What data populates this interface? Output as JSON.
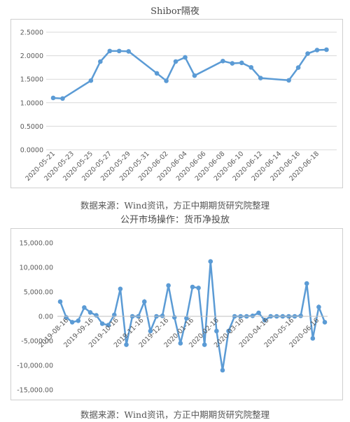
{
  "chart_data": [
    {
      "type": "line",
      "title": "Shibor隔夜",
      "x": [
        "2020-05-21",
        "2020-05-22",
        "2020-05-25",
        "2020-05-26",
        "2020-05-27",
        "2020-05-28",
        "2020-05-29",
        "2020-06-01",
        "2020-06-02",
        "2020-06-03",
        "2020-06-04",
        "2020-06-05",
        "2020-06-08",
        "2020-06-09",
        "2020-06-10",
        "2020-06-11",
        "2020-06-12",
        "2020-06-15",
        "2020-06-16",
        "2020-06-17",
        "2020-06-18",
        "2020-06-19"
      ],
      "values": [
        1.102,
        1.09,
        1.47,
        1.875,
        2.1,
        2.1,
        2.092,
        1.625,
        1.466,
        1.877,
        1.965,
        1.577,
        1.886,
        1.837,
        1.848,
        1.752,
        1.525,
        1.477,
        1.748,
        2.045,
        2.12,
        2.128
      ],
      "xticks": [
        "2020-05-21",
        "2020-05-23",
        "2020-05-25",
        "2020-05-27",
        "2020-05-29",
        "2020-05-31",
        "2020-06-02",
        "2020-06-04",
        "2020-06-06",
        "2020-06-08",
        "2020-06-10",
        "2020-06-12",
        "2020-06-14",
        "2020-06-16",
        "2020-06-18"
      ],
      "yticks": [
        "0.0000",
        "0.5000",
        "1.0000",
        "1.5000",
        "2.0000",
        "2.5000"
      ],
      "ylim": [
        0,
        2.5
      ],
      "xlabel": "",
      "ylabel": "",
      "color": "#5b9bd5",
      "grid": "horizontal",
      "source": "数据来源：Wind资讯，方正中期期货研究院整理"
    },
    {
      "type": "line",
      "title": "公开市场操作：货币净投放",
      "values": [
        3000,
        -200,
        -1200,
        -900,
        1800,
        800,
        200,
        -1500,
        -1800,
        300,
        5600,
        -5800,
        0,
        0,
        3000,
        -3000,
        0,
        100,
        6300,
        -200,
        -5500,
        -400,
        6000,
        5800,
        -5800,
        11200,
        -3000,
        -11000,
        -3000,
        0,
        0,
        0,
        100,
        700,
        -800,
        0,
        0,
        0,
        0,
        0,
        100,
        6700,
        -4500,
        1900,
        -1200
      ],
      "xticks": [
        "2019-08-16",
        "2019-09-16",
        "2019-10-16",
        "2019-11-16",
        "2019-12-16",
        "2020-01-16",
        "2020-02-16",
        "2020-03-16",
        "2020-04-16",
        "2020-05-16",
        "2020-06-16"
      ],
      "yticks": [
        "-15,000.00",
        "-10,000.00",
        "-5,000.00",
        "0.00",
        "5,000.00",
        "10,000.00",
        "15,000.00"
      ],
      "ylim": [
        -15000,
        15000
      ],
      "xlabel": "",
      "ylabel": "",
      "color": "#5b9bd5",
      "grid": "horizontal",
      "source": "数据来源：Wind资讯，方正中期期货研究院整理"
    }
  ]
}
